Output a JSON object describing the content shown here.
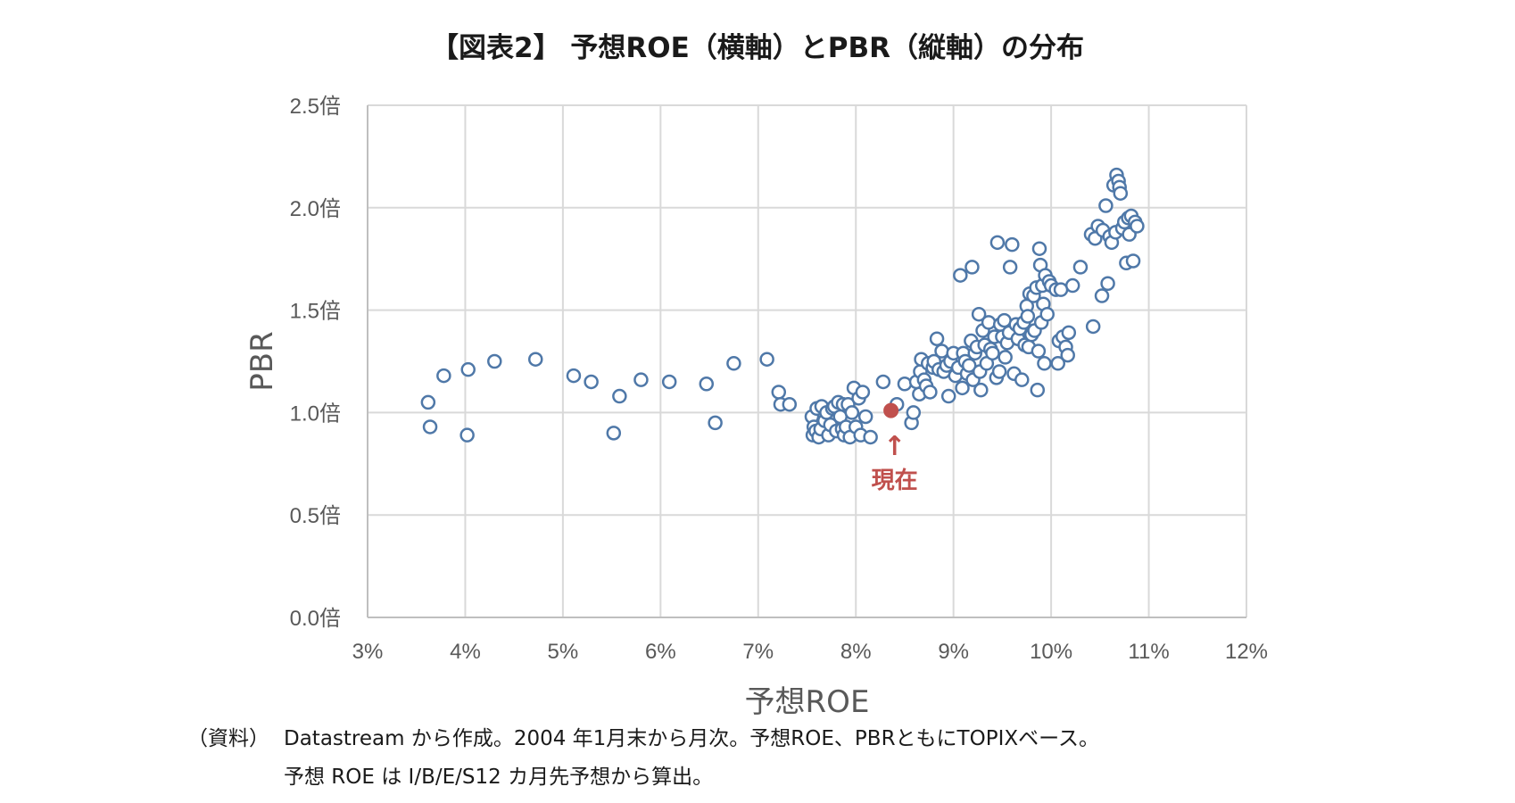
{
  "chart_data": {
    "type": "scatter",
    "title": "【図表2】 予想ROE（横軸）とPBR（縦軸）の分布",
    "xlabel": "予想ROE",
    "ylabel": "PBR",
    "xlim": [
      3,
      12
    ],
    "ylim": [
      0,
      2.5
    ],
    "xticks": [
      3,
      4,
      5,
      6,
      7,
      8,
      9,
      10,
      11,
      12
    ],
    "xtick_labels": [
      "3%",
      "4%",
      "5%",
      "6%",
      "7%",
      "8%",
      "9%",
      "10%",
      "11%",
      "12%"
    ],
    "yticks": [
      0,
      0.5,
      1.0,
      1.5,
      2.0,
      2.5
    ],
    "ytick_labels": [
      "0.0倍",
      "0.5倍",
      "1.0倍",
      "1.5倍",
      "2.0倍",
      "2.5倍"
    ],
    "grid": true,
    "series": [
      {
        "color": "#4f78a8",
        "marker": "open-circle",
        "points": [
          [
            3.62,
            1.05
          ],
          [
            3.64,
            0.93
          ],
          [
            3.78,
            1.18
          ],
          [
            4.02,
            0.89
          ],
          [
            4.03,
            1.21
          ],
          [
            4.3,
            1.25
          ],
          [
            4.72,
            1.26
          ],
          [
            5.11,
            1.18
          ],
          [
            5.29,
            1.15
          ],
          [
            5.52,
            0.9
          ],
          [
            5.58,
            1.08
          ],
          [
            5.8,
            1.16
          ],
          [
            6.09,
            1.15
          ],
          [
            6.47,
            1.14
          ],
          [
            6.56,
            0.95
          ],
          [
            6.75,
            1.24
          ],
          [
            7.09,
            1.26
          ],
          [
            7.21,
            1.1
          ],
          [
            7.23,
            1.04
          ],
          [
            7.32,
            1.04
          ],
          [
            7.55,
            0.98
          ],
          [
            7.56,
            0.89
          ],
          [
            7.57,
            0.93
          ],
          [
            7.59,
            0.91
          ],
          [
            7.6,
            1.02
          ],
          [
            7.62,
            0.88
          ],
          [
            7.64,
            0.92
          ],
          [
            7.65,
            1.03
          ],
          [
            7.68,
            0.96
          ],
          [
            7.7,
            1.0
          ],
          [
            7.72,
            0.89
          ],
          [
            7.74,
            0.94
          ],
          [
            7.76,
            1.02
          ],
          [
            7.78,
            1.03
          ],
          [
            7.8,
            0.91
          ],
          [
            7.82,
            1.05
          ],
          [
            7.84,
            0.98
          ],
          [
            7.86,
            0.92
          ],
          [
            7.87,
            1.04
          ],
          [
            7.88,
            0.89
          ],
          [
            7.9,
            0.93
          ],
          [
            7.92,
            1.04
          ],
          [
            7.94,
            0.88
          ],
          [
            7.96,
            1.0
          ],
          [
            7.98,
            1.12
          ],
          [
            8.0,
            0.93
          ],
          [
            8.03,
            1.07
          ],
          [
            8.05,
            0.89
          ],
          [
            8.07,
            1.1
          ],
          [
            8.1,
            0.98
          ],
          [
            8.15,
            0.88
          ],
          [
            8.28,
            1.15
          ],
          [
            8.42,
            1.04
          ],
          [
            8.5,
            1.14
          ],
          [
            8.57,
            0.95
          ],
          [
            8.59,
            1.0
          ],
          [
            8.62,
            1.15
          ],
          [
            8.65,
            1.09
          ],
          [
            8.66,
            1.2
          ],
          [
            8.67,
            1.26
          ],
          [
            8.7,
            1.16
          ],
          [
            8.72,
            1.13
          ],
          [
            8.74,
            1.24
          ],
          [
            8.76,
            1.1
          ],
          [
            8.79,
            1.22
          ],
          [
            8.8,
            1.25
          ],
          [
            8.83,
            1.36
          ],
          [
            8.85,
            1.21
          ],
          [
            8.88,
            1.3
          ],
          [
            8.9,
            1.2
          ],
          [
            8.93,
            1.23
          ],
          [
            8.95,
            1.08
          ],
          [
            8.97,
            1.25
          ],
          [
            9.0,
            1.29
          ],
          [
            9.02,
            1.18
          ],
          [
            9.05,
            1.22
          ],
          [
            9.07,
            1.67
          ],
          [
            9.09,
            1.12
          ],
          [
            9.1,
            1.29
          ],
          [
            9.12,
            1.25
          ],
          [
            9.14,
            1.19
          ],
          [
            9.16,
            1.23
          ],
          [
            9.18,
            1.35
          ],
          [
            9.19,
            1.71
          ],
          [
            9.2,
            1.16
          ],
          [
            9.22,
            1.29
          ],
          [
            9.24,
            1.32
          ],
          [
            9.26,
            1.48
          ],
          [
            9.27,
            1.2
          ],
          [
            9.28,
            1.11
          ],
          [
            9.3,
            1.4
          ],
          [
            9.32,
            1.33
          ],
          [
            9.34,
            1.24
          ],
          [
            9.36,
            1.44
          ],
          [
            9.38,
            1.31
          ],
          [
            9.4,
            1.29
          ],
          [
            9.42,
            1.37
          ],
          [
            9.44,
            1.17
          ],
          [
            9.45,
            1.83
          ],
          [
            9.47,
            1.2
          ],
          [
            9.48,
            1.43
          ],
          [
            9.5,
            1.37
          ],
          [
            9.52,
            1.45
          ],
          [
            9.53,
            1.27
          ],
          [
            9.55,
            1.34
          ],
          [
            9.57,
            1.39
          ],
          [
            9.58,
            1.71
          ],
          [
            9.6,
            1.82
          ],
          [
            9.62,
            1.19
          ],
          [
            9.64,
            1.43
          ],
          [
            9.66,
            1.36
          ],
          [
            9.68,
            1.41
          ],
          [
            9.7,
            1.16
          ],
          [
            9.72,
            1.44
          ],
          [
            9.73,
            1.33
          ],
          [
            9.75,
            1.52
          ],
          [
            9.76,
            1.47
          ],
          [
            9.77,
            1.32
          ],
          [
            9.78,
            1.58
          ],
          [
            9.8,
            1.38
          ],
          [
            9.82,
            1.57
          ],
          [
            9.83,
            1.4
          ],
          [
            9.85,
            1.61
          ],
          [
            9.86,
            1.11
          ],
          [
            9.87,
            1.3
          ],
          [
            9.88,
            1.8
          ],
          [
            9.89,
            1.72
          ],
          [
            9.9,
            1.44
          ],
          [
            9.91,
            1.62
          ],
          [
            9.92,
            1.53
          ],
          [
            9.93,
            1.24
          ],
          [
            9.94,
            1.67
          ],
          [
            9.96,
            1.48
          ],
          [
            9.98,
            1.64
          ],
          [
            10.0,
            1.62
          ],
          [
            10.05,
            1.6
          ],
          [
            10.07,
            1.24
          ],
          [
            10.08,
            1.35
          ],
          [
            10.1,
            1.6
          ],
          [
            10.12,
            1.37
          ],
          [
            10.15,
            1.32
          ],
          [
            10.17,
            1.28
          ],
          [
            10.18,
            1.39
          ],
          [
            10.22,
            1.62
          ],
          [
            10.3,
            1.71
          ],
          [
            10.41,
            1.87
          ],
          [
            10.43,
            1.42
          ],
          [
            10.45,
            1.85
          ],
          [
            10.48,
            1.91
          ],
          [
            10.52,
            1.57
          ],
          [
            10.53,
            1.89
          ],
          [
            10.56,
            2.01
          ],
          [
            10.58,
            1.63
          ],
          [
            10.6,
            1.86
          ],
          [
            10.62,
            1.83
          ],
          [
            10.64,
            2.11
          ],
          [
            10.66,
            1.88
          ],
          [
            10.67,
            2.16
          ],
          [
            10.69,
            2.13
          ],
          [
            10.7,
            2.1
          ],
          [
            10.71,
            2.07
          ],
          [
            10.73,
            1.9
          ],
          [
            10.75,
            1.93
          ],
          [
            10.77,
            1.73
          ],
          [
            10.79,
            1.95
          ],
          [
            10.8,
            1.87
          ],
          [
            10.82,
            1.96
          ],
          [
            10.84,
            1.74
          ],
          [
            10.86,
            1.93
          ],
          [
            10.88,
            1.91
          ]
        ]
      }
    ],
    "highlight": {
      "point": [
        8.36,
        1.01
      ],
      "color": "#c0504d",
      "label": "現在",
      "arrow": "↑"
    }
  },
  "notes": {
    "label": "（資料）",
    "line1": "Datastream から作成。2004 年1月末から月次。予想ROE、PBRともにTOPIXベース。",
    "line2": "予想 ROE は I/B/E/S12 カ月先予想から算出。"
  }
}
